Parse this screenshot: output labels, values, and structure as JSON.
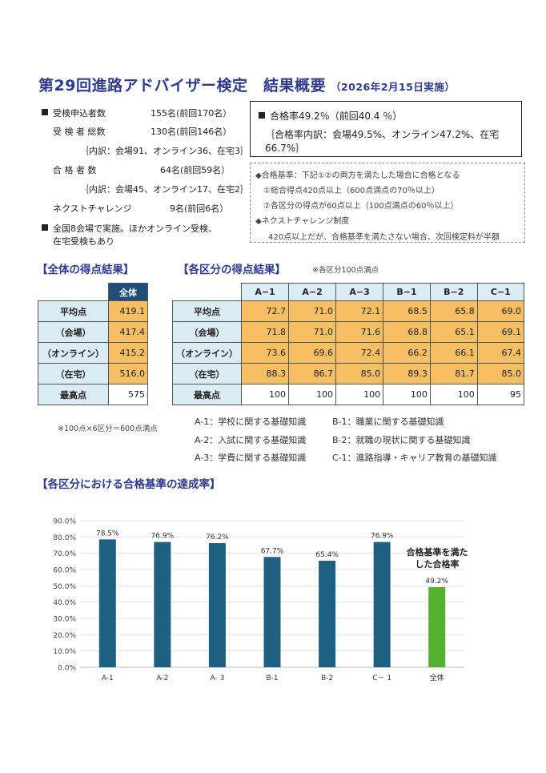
{
  "header": {
    "title": "第29回進路アドバイザー検定　結果概要",
    "subtitle": "（2026年2月15日実施）"
  },
  "stats": {
    "applicants": {
      "label": "受検申込者数",
      "value": "155名(前回170名）"
    },
    "examinees": {
      "label": "受 検 者 総数",
      "value": "130名(前回146名）"
    },
    "examinees_breakdown": "｛内訳：会場91、オンライン36、在宅3｝",
    "passers": {
      "label": "合 格 者 数",
      "value": "64名(前回59名）"
    },
    "passers_breakdown": "｛内訳：会場45、オンライン17、在宅2｝",
    "next_challenge": {
      "label": "ネクストチャレンジ",
      "value": "9名(前回6名）"
    },
    "venues_line1": "全国8会場で実施。ほかオンライン受検、",
    "venues_line2": "在宅受検もあり"
  },
  "pass_rate": {
    "line1": "合格率49.2％（前回40.4 ％）",
    "line2": "｛合格率内訳：会場49.5%、オンライン47.2%、在宅66.7%｝"
  },
  "criteria": {
    "heading": "◆合格基準：下記①②の両方を満たした場合に合格となる",
    "item1": "①総合得点420点以上（600点満点の70％以上）",
    "item2": "②各区分の得点が60点以上（100点満点の60％以上）",
    "next_heading": "◆ネクストチャレンジ制度",
    "next_desc": "420点以上だが、合格基準を満たさない場合、次回検定料が半額"
  },
  "overall": {
    "section_title": "【全体の得点結果】",
    "column_header": "全体",
    "rows": [
      {
        "label": "平均点",
        "value": "419.1"
      },
      {
        "label": "（会場）",
        "value": "417.4"
      },
      {
        "label": "（オンライン）",
        "value": "415.2"
      },
      {
        "label": "（在宅）",
        "value": "516.0"
      },
      {
        "label": "最高点",
        "value": "575"
      }
    ],
    "footnote": "※100点×6区分＝600点満点"
  },
  "category": {
    "section_title": "【各区分の得点結果】",
    "note": "※各区分100点満点",
    "headers": [
      "A−1",
      "A−2",
      "A−3",
      "B−1",
      "B−2",
      "C−1"
    ],
    "rows": [
      {
        "label": "平均点",
        "values": [
          "72.7",
          "71.0",
          "72.1",
          "68.5",
          "65.8",
          "69.0"
        ]
      },
      {
        "label": "（会場）",
        "values": [
          "71.8",
          "71.0",
          "71.6",
          "68.8",
          "65.1",
          "69.1"
        ]
      },
      {
        "label": "（オンライン）",
        "values": [
          "73.6",
          "69.6",
          "72.4",
          "66.2",
          "66.1",
          "67.4"
        ]
      },
      {
        "label": "（在宅）",
        "values": [
          "88.3",
          "86.7",
          "85.0",
          "89.3",
          "81.7",
          "85.0"
        ]
      },
      {
        "label": "最高点",
        "values": [
          "100",
          "100",
          "100",
          "100",
          "100",
          "95"
        ]
      }
    ]
  },
  "legend": {
    "a1": "A-1：学校に関する基礎知識",
    "a2": "A-2：入試に関する基礎知識",
    "a3": "A-3：学費に関する基礎知識",
    "b1": "B-1：職業に関する基礎知識",
    "b2": "B-2：就職の現状に関する基礎知識",
    "c1": "C-1：進路指導・キャリア教育の基礎知識"
  },
  "chart_section_title": "【各区分における合格基準の達成率】",
  "colors": {
    "title": "#2e3a8c",
    "bar_blue": "#1f5f80",
    "bar_green": "#55b032",
    "table_orange": "#f6bf63",
    "table_row_header": "#dcecf5",
    "table_col_header": "#1f4e79"
  },
  "chart_data": {
    "type": "bar",
    "title": "",
    "xlabel": "",
    "ylabel": "",
    "categories": [
      "A-1",
      "A-2",
      "A- 3",
      "B-1",
      "B-2",
      "C－ 1",
      "全体"
    ],
    "values": [
      78.5,
      76.9,
      76.2,
      67.7,
      65.4,
      76.9,
      49.2
    ],
    "value_labels": [
      "78.5%",
      "76.9%",
      "76.2%",
      "67.7%",
      "65.4%",
      "76.9%",
      "49.2%"
    ],
    "ylim": [
      0,
      90
    ],
    "yticks": [
      0,
      10,
      20,
      30,
      40,
      50,
      60,
      70,
      80,
      90
    ],
    "ytick_labels": [
      "0.0%",
      "10.0%",
      "20.0%",
      "30.0%",
      "40.0%",
      "50.0%",
      "60.0%",
      "70.0%",
      "80.0%",
      "90.0%"
    ],
    "grid": true,
    "annotation_line1": "合格基準を満た",
    "annotation_line2": "した合格率"
  }
}
